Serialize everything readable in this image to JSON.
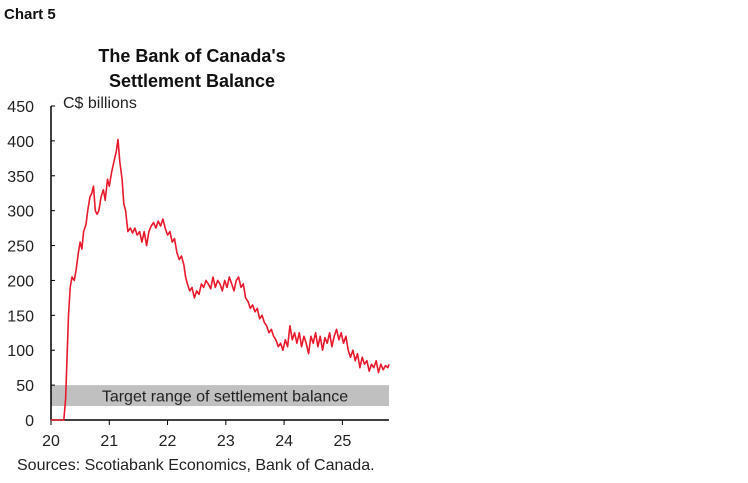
{
  "chart_label": "Chart 5",
  "chart_data": {
    "type": "line",
    "title": [
      "The Bank of Canada's",
      "Settlement Balance"
    ],
    "ylabel": "C$ billions",
    "xlabel": "",
    "ylim": [
      0,
      450
    ],
    "xlim": [
      20,
      25.8
    ],
    "yticks": [
      "0",
      "50",
      "100",
      "150",
      "200",
      "250",
      "300",
      "350",
      "400",
      "450"
    ],
    "xticks": [
      "20",
      "21",
      "22",
      "23",
      "24",
      "25"
    ],
    "grid": false,
    "line_color": "#e8192c",
    "band": {
      "label": "Target range of settlement balance",
      "range": [
        20,
        50
      ],
      "color": "#c0c0c0"
    },
    "series": [
      {
        "points": [
          [
            20.0,
            0
          ],
          [
            20.2,
            0
          ],
          [
            20.22,
            0
          ],
          [
            20.25,
            30
          ],
          [
            20.28,
            100
          ],
          [
            20.3,
            150
          ],
          [
            20.33,
            190
          ],
          [
            20.36,
            205
          ],
          [
            20.4,
            200
          ],
          [
            20.43,
            215
          ],
          [
            20.47,
            240
          ],
          [
            20.5,
            255
          ],
          [
            20.53,
            245
          ],
          [
            20.56,
            270
          ],
          [
            20.6,
            280
          ],
          [
            20.63,
            300
          ],
          [
            20.67,
            320
          ],
          [
            20.7,
            325
          ],
          [
            20.73,
            335
          ],
          [
            20.76,
            300
          ],
          [
            20.79,
            295
          ],
          [
            20.82,
            300
          ],
          [
            20.86,
            320
          ],
          [
            20.9,
            330
          ],
          [
            20.93,
            315
          ],
          [
            20.97,
            345
          ],
          [
            21.0,
            335
          ],
          [
            21.04,
            355
          ],
          [
            21.08,
            370
          ],
          [
            21.12,
            385
          ],
          [
            21.15,
            402
          ],
          [
            21.18,
            370
          ],
          [
            21.22,
            345
          ],
          [
            21.25,
            310
          ],
          [
            21.28,
            300
          ],
          [
            21.32,
            270
          ],
          [
            21.36,
            275
          ],
          [
            21.4,
            268
          ],
          [
            21.44,
            275
          ],
          [
            21.48,
            265
          ],
          [
            21.52,
            270
          ],
          [
            21.56,
            255
          ],
          [
            21.6,
            270
          ],
          [
            21.64,
            250
          ],
          [
            21.68,
            270
          ],
          [
            21.72,
            278
          ],
          [
            21.76,
            283
          ],
          [
            21.8,
            275
          ],
          [
            21.84,
            285
          ],
          [
            21.88,
            278
          ],
          [
            21.92,
            288
          ],
          [
            21.96,
            275
          ],
          [
            22.0,
            265
          ],
          [
            22.04,
            270
          ],
          [
            22.08,
            255
          ],
          [
            22.12,
            260
          ],
          [
            22.16,
            240
          ],
          [
            22.2,
            230
          ],
          [
            22.24,
            235
          ],
          [
            22.28,
            222
          ],
          [
            22.31,
            205
          ],
          [
            22.34,
            195
          ],
          [
            22.38,
            185
          ],
          [
            22.42,
            190
          ],
          [
            22.46,
            175
          ],
          [
            22.5,
            185
          ],
          [
            22.54,
            180
          ],
          [
            22.58,
            195
          ],
          [
            22.62,
            190
          ],
          [
            22.66,
            200
          ],
          [
            22.7,
            195
          ],
          [
            22.74,
            188
          ],
          [
            22.78,
            205
          ],
          [
            22.82,
            190
          ],
          [
            22.86,
            200
          ],
          [
            22.9,
            195
          ],
          [
            22.94,
            185
          ],
          [
            22.98,
            200
          ],
          [
            23.02,
            190
          ],
          [
            23.06,
            205
          ],
          [
            23.1,
            195
          ],
          [
            23.14,
            185
          ],
          [
            23.18,
            200
          ],
          [
            23.22,
            205
          ],
          [
            23.26,
            190
          ],
          [
            23.3,
            195
          ],
          [
            23.34,
            175
          ],
          [
            23.38,
            170
          ],
          [
            23.42,
            160
          ],
          [
            23.46,
            165
          ],
          [
            23.5,
            155
          ],
          [
            23.54,
            160
          ],
          [
            23.58,
            145
          ],
          [
            23.62,
            150
          ],
          [
            23.66,
            140
          ],
          [
            23.7,
            135
          ],
          [
            23.74,
            125
          ],
          [
            23.78,
            130
          ],
          [
            23.82,
            120
          ],
          [
            23.86,
            115
          ],
          [
            23.9,
            105
          ],
          [
            23.94,
            110
          ],
          [
            23.98,
            100
          ],
          [
            24.02,
            115
          ],
          [
            24.06,
            105
          ],
          [
            24.1,
            135
          ],
          [
            24.14,
            115
          ],
          [
            24.18,
            125
          ],
          [
            24.22,
            110
          ],
          [
            24.26,
            125
          ],
          [
            24.3,
            105
          ],
          [
            24.34,
            120
          ],
          [
            24.38,
            110
          ],
          [
            24.42,
            95
          ],
          [
            24.46,
            120
          ],
          [
            24.5,
            110
          ],
          [
            24.54,
            125
          ],
          [
            24.58,
            105
          ],
          [
            24.62,
            120
          ],
          [
            24.66,
            100
          ],
          [
            24.7,
            118
          ],
          [
            24.74,
            110
          ],
          [
            24.78,
            125
          ],
          [
            24.82,
            105
          ],
          [
            24.86,
            120
          ],
          [
            24.9,
            130
          ],
          [
            24.94,
            115
          ],
          [
            24.98,
            125
          ],
          [
            25.02,
            110
          ],
          [
            25.06,
            120
          ],
          [
            25.1,
            100
          ],
          [
            25.14,
            90
          ],
          [
            25.18,
            100
          ],
          [
            25.22,
            85
          ],
          [
            25.26,
            95
          ],
          [
            25.3,
            75
          ],
          [
            25.34,
            90
          ],
          [
            25.38,
            80
          ],
          [
            25.42,
            85
          ],
          [
            25.46,
            70
          ],
          [
            25.5,
            80
          ],
          [
            25.54,
            75
          ],
          [
            25.58,
            85
          ],
          [
            25.62,
            68
          ],
          [
            25.66,
            80
          ],
          [
            25.7,
            72
          ],
          [
            25.74,
            78
          ],
          [
            25.78,
            75
          ],
          [
            25.8,
            80
          ]
        ]
      }
    ],
    "source": "Sources: Scotiabank Economics, Bank of Canada."
  }
}
